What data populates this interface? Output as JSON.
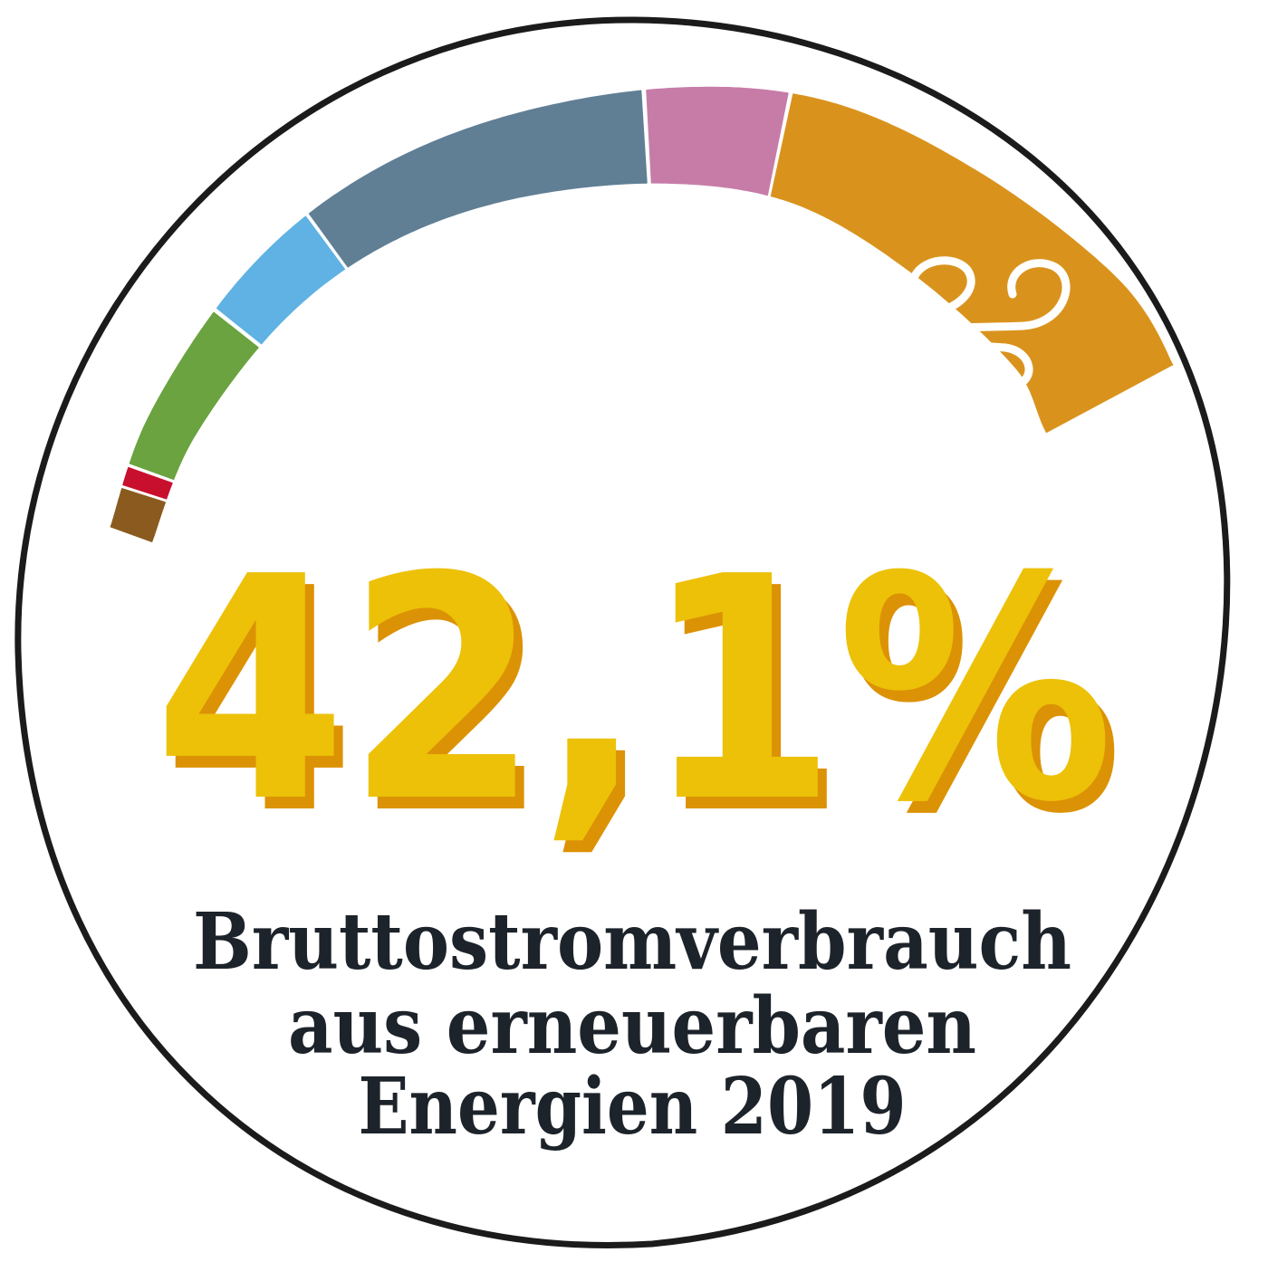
{
  "chart_data": {
    "type": "arc-segments",
    "headline": "42,1%",
    "caption_lines": [
      "Bruttostromverbrauch",
      "aus erneuerbaren",
      "Energien 2019"
    ],
    "segments": [
      {
        "color": "#8a5a1e",
        "share": 3.5
      },
      {
        "color": "#c8102e",
        "share": 1.5
      },
      {
        "color": "#6aa33f",
        "share": 13.5
      },
      {
        "color": "#5fb2e3",
        "share": 10.0
      },
      {
        "color": "#607f95",
        "share": 27.0
      },
      {
        "color": "#c77ca8",
        "share": 10.5
      },
      {
        "color": "#d9931d",
        "share": 34.0
      }
    ],
    "icon": "wind-icon"
  },
  "colors": {
    "outline": "#1b1b1b",
    "headline_fill": "#ecc108",
    "headline_shadow": "#dc9205",
    "caption": "#1d232a",
    "wind_icon": "#ffffff"
  }
}
